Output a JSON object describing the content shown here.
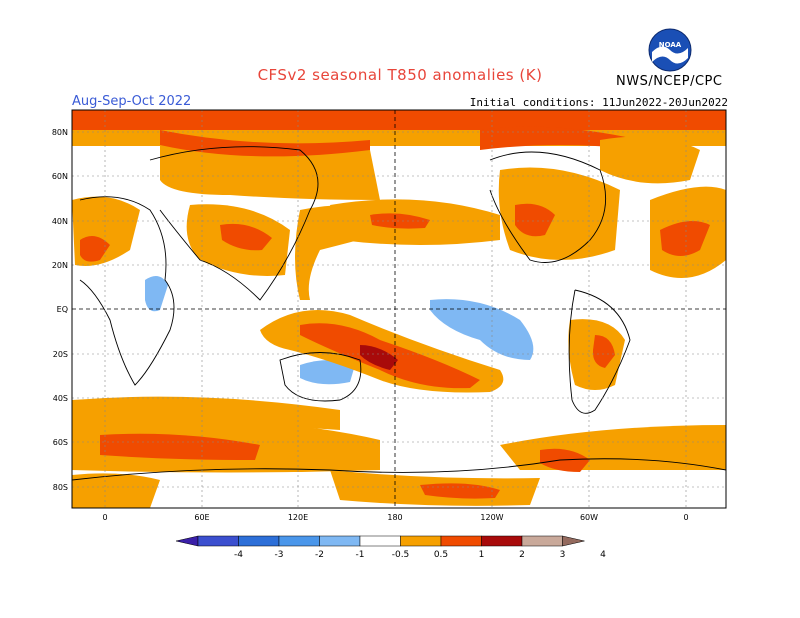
{
  "header": {
    "title": "CFSv2 seasonal T850 anomalies (K)",
    "season": "Aug-Sep-Oct 2022",
    "initial_conditions": "Initial conditions: 11Jun2022-20Jun2022",
    "agency": "NWS/NCEP/CPC",
    "logo_text": "NOAA"
  },
  "map": {
    "lat_labels": [
      "80N",
      "60N",
      "40N",
      "20N",
      "EQ",
      "20S",
      "40S",
      "60S",
      "80S"
    ],
    "lon_labels": [
      "0",
      "60E",
      "120E",
      "180",
      "120W",
      "60W",
      "0"
    ]
  },
  "colorbar": {
    "tick_labels": [
      "-4",
      "-3",
      "-2",
      "-1",
      "-0.5",
      "0.5",
      "1",
      "2",
      "3",
      "4"
    ],
    "colors": [
      "#3a1fa8",
      "#3b4fcf",
      "#2d6fd8",
      "#4a96ea",
      "#7fb8f3",
      "#ffffff",
      "#f6a000",
      "#f04b00",
      "#a80a0a",
      "#c9a99a",
      "#946a5e"
    ]
  }
}
